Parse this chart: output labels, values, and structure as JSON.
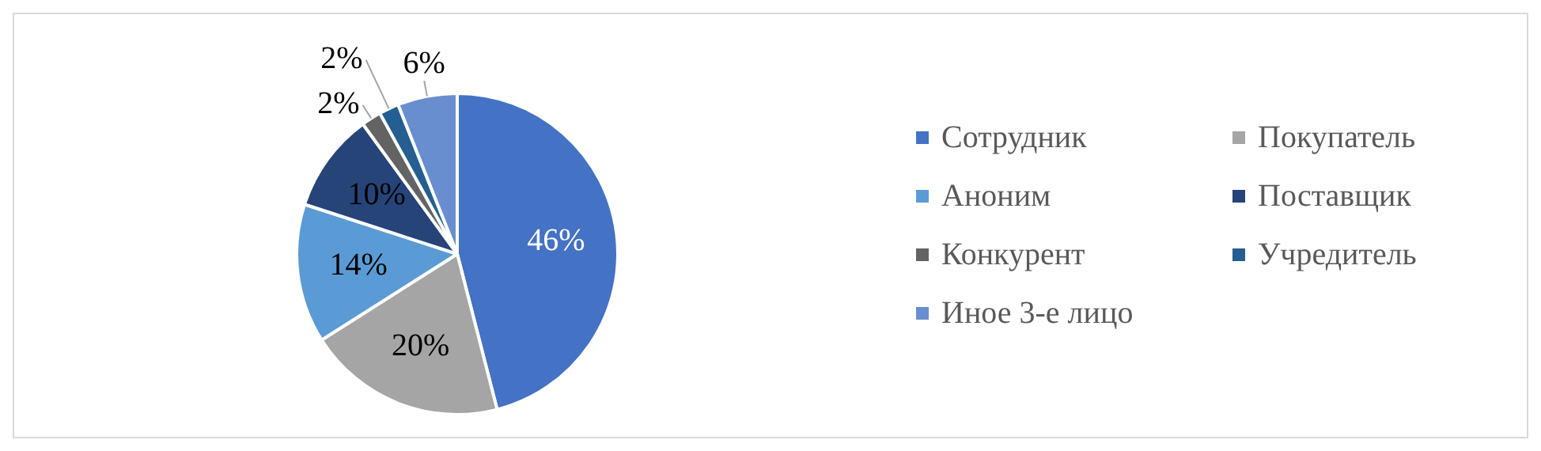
{
  "chart_data": {
    "type": "pie",
    "categories": [
      "Сотрудник",
      "Покупатель",
      "Аноним",
      "Поставщик",
      "Конкурент",
      "Учредитель",
      "Иное 3-е лицо"
    ],
    "values": [
      46,
      20,
      14,
      10,
      2,
      2,
      6
    ],
    "colors": [
      "#4472c4",
      "#a5a5a5",
      "#5b9bd5",
      "#264478",
      "#636363",
      "#255e91",
      "#698ed0"
    ],
    "value_labels": [
      "46%",
      "20%",
      "14%",
      "10%",
      "2%",
      "2%",
      "6%"
    ],
    "legend": "right"
  }
}
